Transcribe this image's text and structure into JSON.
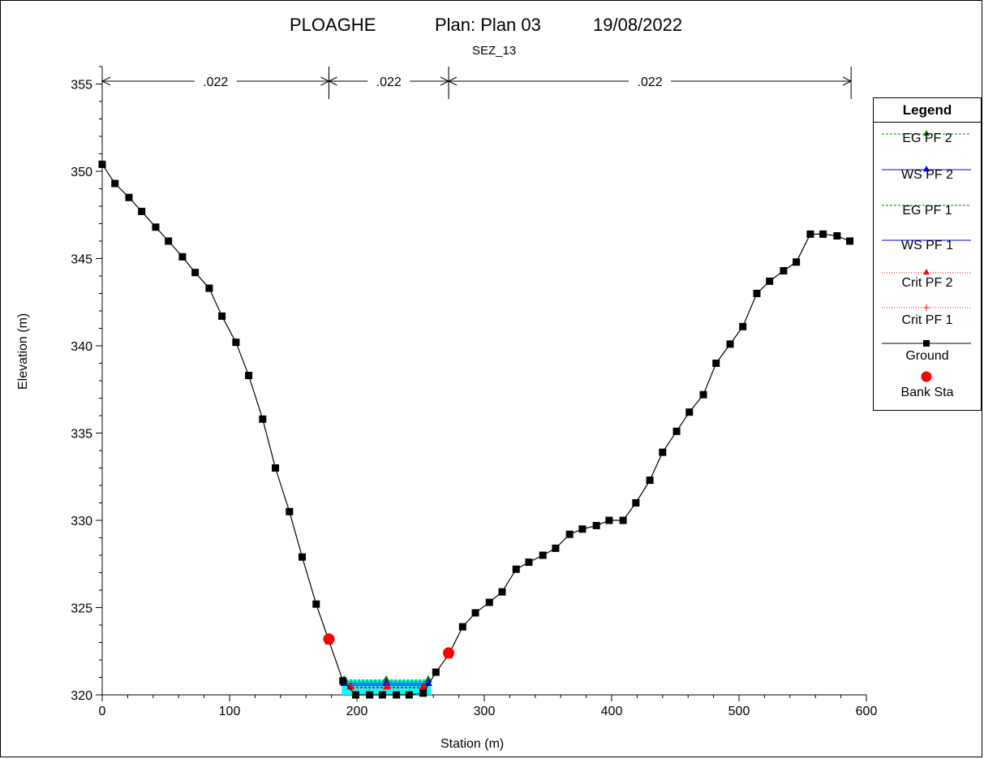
{
  "title": {
    "project": "PLOAGHE",
    "plan": "Plan: Plan 03",
    "date": "19/08/2022"
  },
  "subtitle": "SEZ_13",
  "chart_data": {
    "type": "line",
    "xlabel": "Station (m)",
    "ylabel": "Elevation (m)",
    "xlim": [
      0,
      600
    ],
    "ylim": [
      320,
      356
    ],
    "x_ticks": [
      "0",
      "100",
      "200",
      "300",
      "400",
      "500",
      "600"
    ],
    "y_ticks": [
      "320",
      "325",
      "330",
      "335",
      "340",
      "345",
      "350",
      "355"
    ],
    "mannings": [
      {
        "label": ".022",
        "from": 0,
        "to": 178
      },
      {
        "label": ".022",
        "from": 178,
        "to": 272
      },
      {
        "label": ".022",
        "from": 272,
        "to": 588
      }
    ],
    "ground": {
      "name": "Ground",
      "x": [
        0,
        10,
        21,
        31,
        42,
        52,
        63,
        73,
        84,
        94,
        105,
        115,
        126,
        136,
        147,
        157,
        168,
        178,
        189,
        199,
        210,
        220,
        231,
        241,
        252,
        262,
        272,
        283,
        293,
        304,
        314,
        325,
        335,
        346,
        356,
        367,
        377,
        388,
        398,
        409,
        419,
        430,
        440,
        451,
        461,
        472,
        482,
        493,
        503,
        514,
        524,
        535,
        545,
        556,
        566,
        577,
        587
      ],
      "y": [
        350.4,
        349.3,
        348.5,
        347.7,
        346.8,
        346.0,
        345.1,
        344.2,
        343.3,
        341.7,
        340.2,
        338.3,
        335.8,
        333.0,
        330.5,
        327.9,
        325.2,
        323.1,
        320.8,
        320.0,
        320.0,
        320.0,
        320.0,
        320.0,
        320.1,
        321.3,
        322.3,
        323.9,
        324.7,
        325.3,
        325.9,
        327.2,
        327.6,
        328.0,
        328.4,
        329.2,
        329.5,
        329.7,
        330.0,
        330.0,
        331.0,
        332.3,
        333.9,
        335.1,
        336.2,
        337.2,
        339.0,
        340.1,
        341.1,
        343.0,
        343.7,
        344.3,
        344.8,
        346.4,
        346.4,
        346.3,
        346.0
      ]
    },
    "bank_stations": {
      "name": "Bank Sta",
      "x": [
        178,
        272
      ],
      "y": [
        323.2,
        322.4
      ]
    },
    "water_surfaces": [
      {
        "name": "EG PF 2",
        "elevation": 320.85,
        "from": 188,
        "to": 258,
        "color": "#008000",
        "marker": "triangle"
      },
      {
        "name": "WS PF 2",
        "elevation": 320.65,
        "from": 188,
        "to": 258,
        "color": "#0000ff",
        "marker": "triangle"
      },
      {
        "name": "EG PF 1",
        "elevation": 320.75,
        "from": 188,
        "to": 258,
        "color": "#008000",
        "marker": "none"
      },
      {
        "name": "WS PF 1",
        "elevation": 320.55,
        "from": 188,
        "to": 258,
        "color": "#0000ff",
        "marker": "none"
      },
      {
        "name": "Crit PF 2",
        "elevation": 320.45,
        "from": 193,
        "to": 254,
        "color": "#ff0000",
        "marker": "triangle"
      },
      {
        "name": "Crit PF 1",
        "elevation": 320.4,
        "from": 193,
        "to": 254,
        "color": "#ff0000",
        "marker": "plus"
      }
    ],
    "legend": {
      "title": "Legend",
      "position": "right",
      "entries": [
        "EG PF 2",
        "WS PF 2",
        "EG PF 1",
        "WS PF 1",
        "Crit PF 2",
        "Crit PF 1",
        "Ground",
        "Bank Sta"
      ]
    },
    "colors": {
      "water_fill": "#00ffff",
      "ground": "#000000",
      "bank": "#ff0000"
    }
  }
}
